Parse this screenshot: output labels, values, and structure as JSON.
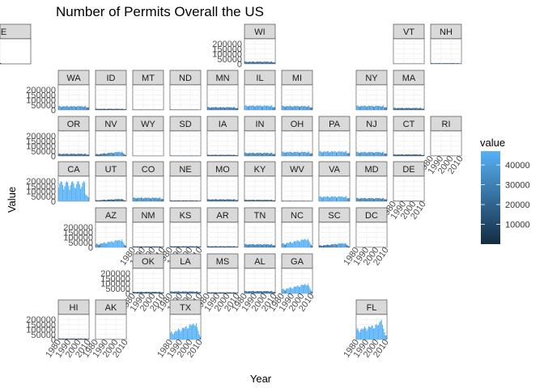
{
  "chart_data": {
    "type": "bar",
    "title": "Number of Permits Overall the US",
    "xlabel": "Year",
    "ylabel": "Value",
    "xlim": [
      1980,
      2010
    ],
    "ylim": [
      0,
      250000
    ],
    "x_ticks": [
      1980,
      1990,
      2000,
      2010
    ],
    "y_ticks": [
      0,
      50000,
      100000,
      150000,
      200000
    ],
    "y_tick_labels": [
      "0",
      "50000",
      "100000",
      "150000",
      "200000"
    ],
    "layout": "geofacet grid of US states",
    "legend": {
      "title": "value",
      "position": "right",
      "ticks": [
        10000,
        20000,
        30000,
        40000
      ],
      "tick_labels": [
        "10000",
        "20000",
        "30000",
        "40000"
      ],
      "low_color": "#132b43",
      "high_color": "#56b1f7",
      "min": 0,
      "max": 47000
    },
    "facets": [
      {
        "state": "WI",
        "peak": 28000,
        "shape": "flat"
      },
      {
        "state": "VT",
        "peak": 4000,
        "shape": "flat"
      },
      {
        "state": "NH",
        "peak": 8000,
        "shape": "flat"
      },
      {
        "state": "ME",
        "peak": 6000,
        "shape": "flat"
      },
      {
        "state": "WA",
        "peak": 48000,
        "shape": "flat"
      },
      {
        "state": "ID",
        "peak": 14000,
        "shape": "flat"
      },
      {
        "state": "MT",
        "peak": 5000,
        "shape": "flat"
      },
      {
        "state": "ND",
        "peak": 5000,
        "shape": "flat"
      },
      {
        "state": "MN",
        "peak": 35000,
        "shape": "flat"
      },
      {
        "state": "IL",
        "peak": 55000,
        "shape": "flat"
      },
      {
        "state": "MI",
        "peak": 50000,
        "shape": "flat"
      },
      {
        "state": "NY",
        "peak": 52000,
        "shape": "flat"
      },
      {
        "state": "MA",
        "peak": 25000,
        "shape": "flat"
      },
      {
        "state": "OR",
        "peak": 28000,
        "shape": "flat"
      },
      {
        "state": "NV",
        "peak": 45000,
        "shape": "rise"
      },
      {
        "state": "WY",
        "peak": 3000,
        "shape": "flat"
      },
      {
        "state": "SD",
        "peak": 5000,
        "shape": "flat"
      },
      {
        "state": "IA",
        "peak": 15000,
        "shape": "flat"
      },
      {
        "state": "IN",
        "peak": 40000,
        "shape": "flat"
      },
      {
        "state": "OH",
        "peak": 52000,
        "shape": "flat"
      },
      {
        "state": "PA",
        "peak": 58000,
        "shape": "flat"
      },
      {
        "state": "NJ",
        "peak": 50000,
        "shape": "flat"
      },
      {
        "state": "CT",
        "peak": 20000,
        "shape": "flat"
      },
      {
        "state": "RI",
        "peak": 4000,
        "shape": "flat"
      },
      {
        "state": "CA",
        "peak": 200000,
        "shape": "ca"
      },
      {
        "state": "UT",
        "peak": 25000,
        "shape": "rise"
      },
      {
        "state": "CO",
        "peak": 45000,
        "shape": "flat"
      },
      {
        "state": "NE",
        "peak": 10000,
        "shape": "flat"
      },
      {
        "state": "MO",
        "peak": 25000,
        "shape": "flat"
      },
      {
        "state": "KY",
        "peak": 18000,
        "shape": "flat"
      },
      {
        "state": "WV",
        "peak": 6000,
        "shape": "flat"
      },
      {
        "state": "VA",
        "peak": 60000,
        "shape": "flat"
      },
      {
        "state": "MD",
        "peak": 40000,
        "shape": "flat"
      },
      {
        "state": "DE",
        "peak": 6000,
        "shape": "flat"
      },
      {
        "state": "AZ",
        "peak": 80000,
        "shape": "rise"
      },
      {
        "state": "NM",
        "peak": 12000,
        "shape": "flat"
      },
      {
        "state": "KS",
        "peak": 14000,
        "shape": "flat"
      },
      {
        "state": "AR",
        "peak": 14000,
        "shape": "flat"
      },
      {
        "state": "TN",
        "peak": 40000,
        "shape": "flat"
      },
      {
        "state": "NC",
        "peak": 90000,
        "shape": "rise"
      },
      {
        "state": "SC",
        "peak": 45000,
        "shape": "rise"
      },
      {
        "state": "DC",
        "peak": 3000,
        "shape": "flat"
      },
      {
        "state": "OK",
        "peak": 20000,
        "shape": "flat"
      },
      {
        "state": "LA",
        "peak": 25000,
        "shape": "flat"
      },
      {
        "state": "MS",
        "peak": 14000,
        "shape": "flat"
      },
      {
        "state": "AL",
        "peak": 30000,
        "shape": "flat"
      },
      {
        "state": "GA",
        "peak": 100000,
        "shape": "rise"
      },
      {
        "state": "HI",
        "peak": 12000,
        "shape": "flat"
      },
      {
        "state": "AK",
        "peak": 4000,
        "shape": "flat"
      },
      {
        "state": "TX",
        "peak": 170000,
        "shape": "rise"
      },
      {
        "state": "FL",
        "peak": 200000,
        "shape": "fl"
      }
    ]
  }
}
